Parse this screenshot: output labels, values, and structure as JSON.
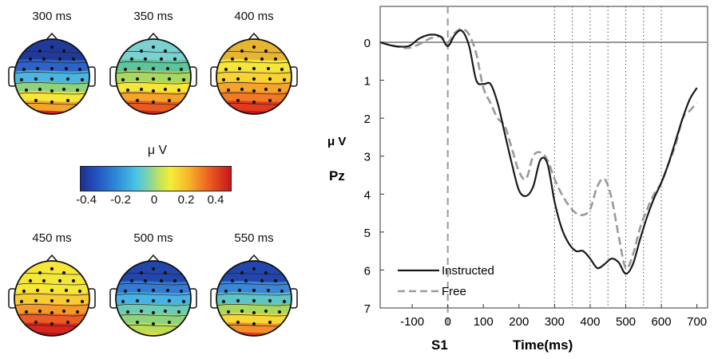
{
  "topomaps": {
    "items": [
      {
        "label": "300 ms"
      },
      {
        "label": "350 ms"
      },
      {
        "label": "400 ms"
      },
      {
        "label": "450 ms"
      },
      {
        "label": "500 ms"
      },
      {
        "label": "550 ms"
      }
    ]
  },
  "colorbar": {
    "unit": "μ V",
    "ticks": [
      "-0.4",
      "-0.2",
      "0",
      "0.2",
      "0.4"
    ],
    "range": [
      -0.5,
      0.5
    ]
  },
  "colors": {
    "instructed": "#1a1a1a",
    "free": "#999999",
    "stim_line": "#999999",
    "marker_line": "#555555"
  },
  "chart_data": {
    "type": "line",
    "title": "",
    "ylabel_unit": "μ V",
    "ylabel_channel": "Pz",
    "stimulus_label": "S1",
    "xlabel": "Time(ms)",
    "xlim": [
      -190,
      730
    ],
    "ylim": [
      0,
      7
    ],
    "y_inverted": true,
    "x_ticks": [
      "-100",
      "0",
      "100",
      "200",
      "300",
      "400",
      "500",
      "600",
      "700"
    ],
    "y_ticks": [
      "0",
      "1",
      "2",
      "3",
      "4",
      "5",
      "6",
      "7"
    ],
    "zero_line": 0,
    "stimulus_onset": 0,
    "vertical_markers": [
      300,
      350,
      400,
      450,
      500,
      550,
      600
    ],
    "legend_position": "bottom-left",
    "series": [
      {
        "name": "Instructed",
        "style": "solid",
        "x": [
          -190,
          -150,
          -110,
          -80,
          -50,
          -20,
          0,
          20,
          40,
          60,
          80,
          100,
          120,
          140,
          160,
          180,
          200,
          220,
          240,
          260,
          280,
          300,
          320,
          340,
          360,
          380,
          400,
          420,
          440,
          460,
          480,
          500,
          520,
          540,
          560,
          580,
          600,
          620,
          640,
          660,
          680,
          700
        ],
        "y": [
          0.0,
          0.1,
          0.1,
          -0.1,
          -0.2,
          -0.15,
          0.1,
          -0.2,
          -0.3,
          0.1,
          1.0,
          1.1,
          1.1,
          1.6,
          2.4,
          3.2,
          3.9,
          4.05,
          3.8,
          3.1,
          3.2,
          4.2,
          4.9,
          5.3,
          5.5,
          5.5,
          5.7,
          5.95,
          5.85,
          5.7,
          5.8,
          6.1,
          5.85,
          5.2,
          4.6,
          4.1,
          3.7,
          3.2,
          2.6,
          2.0,
          1.5,
          1.2
        ]
      },
      {
        "name": "Free",
        "style": "dashed",
        "x": [
          -190,
          -150,
          -110,
          -80,
          -50,
          -20,
          0,
          20,
          40,
          60,
          80,
          100,
          120,
          140,
          160,
          180,
          200,
          220,
          240,
          260,
          280,
          300,
          320,
          340,
          360,
          380,
          400,
          420,
          440,
          460,
          480,
          500,
          520,
          540,
          560,
          580,
          600,
          620,
          640,
          660,
          680,
          700
        ],
        "y": [
          0.0,
          0.1,
          0.15,
          0.05,
          -0.1,
          -0.15,
          0.0,
          -0.25,
          -0.35,
          -0.2,
          0.3,
          1.2,
          1.6,
          2.0,
          2.2,
          2.8,
          3.4,
          3.6,
          3.0,
          2.9,
          3.1,
          3.6,
          4.0,
          4.3,
          4.5,
          4.55,
          4.4,
          3.8,
          3.6,
          4.1,
          5.1,
          5.95,
          5.6,
          4.9,
          4.4,
          4.0,
          3.7,
          3.2,
          2.7,
          2.0,
          1.8,
          1.6
        ]
      }
    ]
  }
}
